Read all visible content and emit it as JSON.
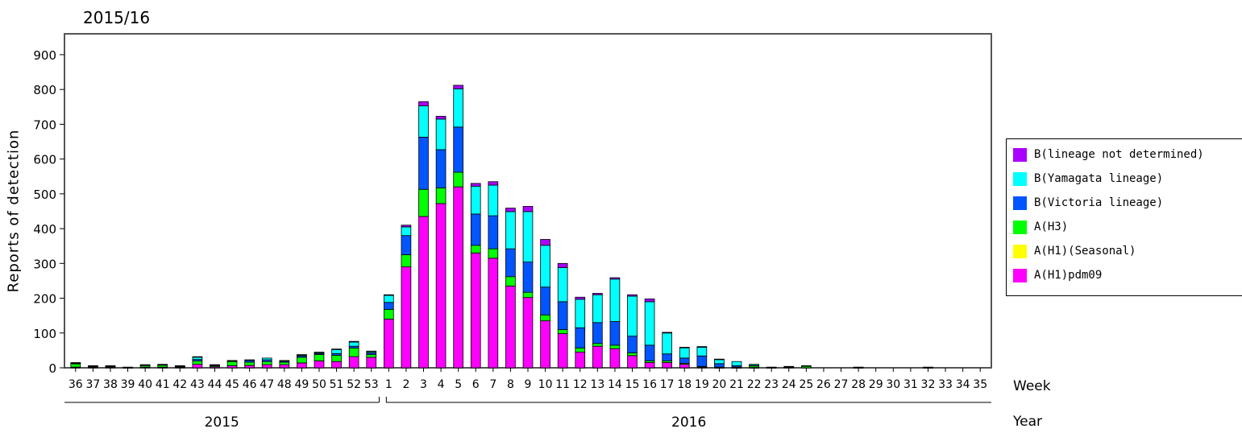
{
  "chart_data": {
    "type": "bar",
    "stacked": true,
    "title": "2015/16",
    "ylabel": "Reports of detection",
    "xlabel": "Week",
    "year_label": "Year",
    "ylim": [
      0,
      960
    ],
    "yticks": [
      0,
      100,
      200,
      300,
      400,
      500,
      600,
      700,
      800,
      900
    ],
    "grid": false,
    "legend_position": "right",
    "year_groups": [
      {
        "label": "2015",
        "from_index": 0,
        "to_index": 17
      },
      {
        "label": "2016",
        "from_index": 18,
        "to_index": 52
      }
    ],
    "categories": [
      "36",
      "37",
      "38",
      "39",
      "40",
      "41",
      "42",
      "43",
      "44",
      "45",
      "46",
      "47",
      "48",
      "49",
      "50",
      "51",
      "52",
      "53",
      "1",
      "2",
      "3",
      "4",
      "5",
      "6",
      "7",
      "8",
      "9",
      "10",
      "11",
      "12",
      "13",
      "14",
      "15",
      "16",
      "17",
      "18",
      "19",
      "20",
      "21",
      "22",
      "23",
      "24",
      "25",
      "26",
      "27",
      "28",
      "29",
      "30",
      "31",
      "32",
      "33",
      "34",
      "35"
    ],
    "series": [
      {
        "name": "A(H1)pdm09",
        "color": "#ff00ff",
        "values": [
          2,
          2,
          2,
          1,
          2,
          2,
          2,
          10,
          3,
          6,
          7,
          9,
          9,
          14,
          20,
          18,
          32,
          30,
          140,
          290,
          435,
          472,
          520,
          330,
          315,
          235,
          202,
          135,
          98,
          45,
          62,
          55,
          35,
          15,
          15,
          10,
          2,
          1,
          1,
          1,
          0,
          0,
          0,
          0,
          0,
          0,
          0,
          0,
          0,
          0,
          0,
          0,
          0
        ]
      },
      {
        "name": "A(H1)(Seasonal)",
        "color": "#ffff00",
        "values": [
          0,
          0,
          0,
          0,
          0,
          0,
          0,
          0,
          0,
          0,
          0,
          0,
          0,
          0,
          0,
          0,
          0,
          0,
          0,
          0,
          0,
          0,
          0,
          0,
          0,
          0,
          0,
          0,
          0,
          0,
          0,
          0,
          0,
          0,
          0,
          0,
          0,
          0,
          0,
          0,
          0,
          0,
          0,
          0,
          0,
          0,
          0,
          0,
          0,
          0,
          0,
          0,
          0
        ]
      },
      {
        "name": "A(H3)",
        "color": "#00ff00",
        "values": [
          10,
          2,
          2,
          1,
          5,
          6,
          2,
          10,
          3,
          12,
          9,
          9,
          7,
          16,
          18,
          18,
          25,
          8,
          28,
          35,
          78,
          45,
          42,
          22,
          27,
          27,
          15,
          17,
          12,
          12,
          8,
          10,
          8,
          5,
          5,
          3,
          2,
          1,
          1,
          5,
          0,
          2,
          5,
          0,
          0,
          1,
          0,
          0,
          0,
          1,
          0,
          0,
          0
        ]
      },
      {
        "name": "B(Victoria lineage)",
        "color": "#0055ff",
        "values": [
          1,
          1,
          1,
          0,
          1,
          1,
          1,
          4,
          2,
          2,
          5,
          5,
          3,
          4,
          3,
          5,
          5,
          5,
          20,
          55,
          150,
          110,
          130,
          90,
          95,
          80,
          87,
          80,
          80,
          58,
          60,
          68,
          48,
          45,
          20,
          15,
          30,
          10,
          4,
          1,
          1,
          1,
          0,
          0,
          0,
          0,
          0,
          0,
          0,
          0,
          0,
          0,
          0
        ]
      },
      {
        "name": "B(Yamagata lineage)",
        "color": "#00ffff",
        "values": [
          1,
          1,
          1,
          0,
          1,
          1,
          1,
          7,
          1,
          1,
          2,
          5,
          2,
          3,
          3,
          12,
          12,
          4,
          20,
          25,
          90,
          88,
          110,
          80,
          88,
          107,
          145,
          120,
          98,
          82,
          80,
          122,
          115,
          125,
          60,
          30,
          25,
          12,
          12,
          3,
          1,
          1,
          1,
          0,
          0,
          1,
          0,
          0,
          0,
          1,
          0,
          0,
          0
        ]
      },
      {
        "name": "B(lineage not determined)",
        "color": "#aa00ff",
        "values": [
          1,
          0,
          0,
          0,
          0,
          0,
          0,
          1,
          0,
          0,
          0,
          0,
          0,
          1,
          1,
          1,
          2,
          1,
          2,
          5,
          12,
          8,
          10,
          8,
          10,
          10,
          15,
          17,
          12,
          6,
          4,
          4,
          4,
          8,
          2,
          1,
          2,
          1,
          0,
          0,
          0,
          0,
          0,
          0,
          0,
          0,
          0,
          0,
          0,
          0,
          0,
          0,
          0
        ]
      }
    ]
  }
}
